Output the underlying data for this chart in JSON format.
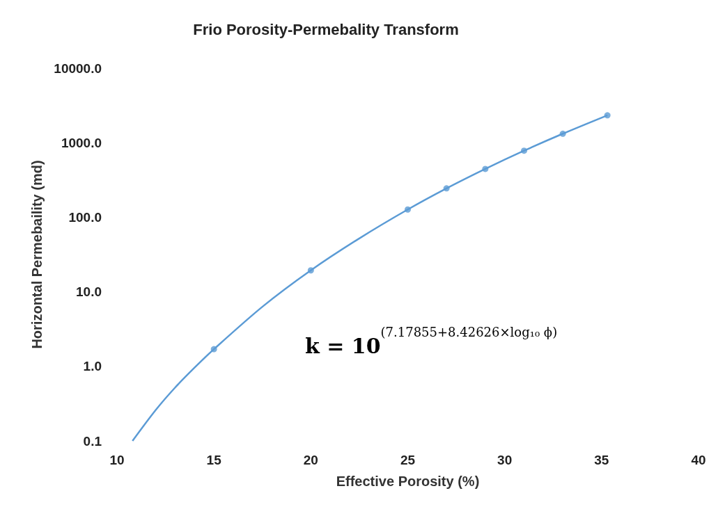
{
  "chart_data": {
    "type": "scatter",
    "title": "Frio Porosity-Permebality Transform",
    "xlabel": "Effective Porosity (%)",
    "ylabel": "Horizontal Permebaility (md)",
    "series": [
      {
        "type": "line",
        "color": "#5b9bd5",
        "marker": "none",
        "x": [
          10.8,
          12,
          13,
          14,
          15,
          17.5,
          20,
          22.5,
          25,
          27,
          29,
          31,
          33,
          35.3
        ],
        "values": [
          0.1,
          0.26,
          0.52,
          0.96,
          1.7,
          6.3,
          19.4,
          52,
          127,
          244,
          445,
          781,
          1320,
          2330
        ]
      },
      {
        "color": "#5b9bd5",
        "marker": "circle",
        "x": [
          15,
          20,
          25,
          27,
          29,
          31,
          33,
          35.3
        ],
        "values": [
          1.7,
          19.4,
          127,
          244,
          445,
          781,
          1320,
          2330
        ]
      }
    ],
    "log": "y",
    "xlim": [
      10,
      40
    ],
    "xticks": [
      10,
      15,
      20,
      25,
      30,
      35,
      40
    ],
    "ylim": [
      0.1,
      10000
    ],
    "yticks": [
      {
        "value": 0.1,
        "label": "0.1"
      },
      {
        "value": 1,
        "label": "1.0"
      },
      {
        "value": 10,
        "label": "10.0"
      },
      {
        "value": 100,
        "label": "100.0"
      },
      {
        "value": 1000,
        "label": "1000.0"
      },
      {
        "value": 10000,
        "label": "10000.0"
      }
    ],
    "grid": false,
    "annotations": [
      "k = 10$^{(7.17855+8.42626×log₁₀ ϕ)}$"
    ]
  }
}
